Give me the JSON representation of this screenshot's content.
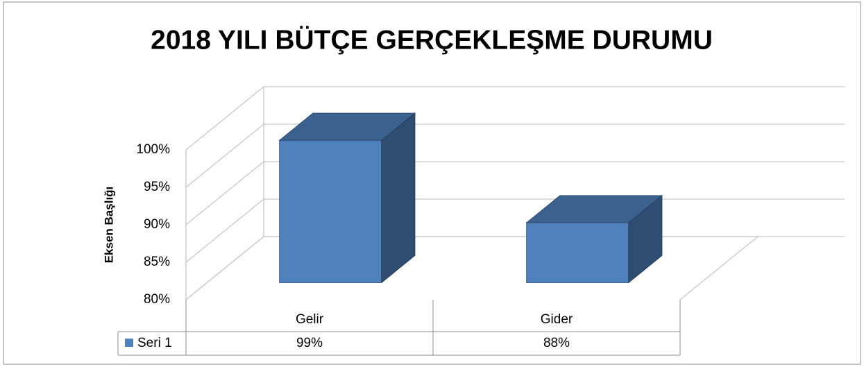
{
  "chart_data": {
    "type": "bar3d",
    "title": "2018 YILI BÜTÇE GERÇEKLEŞME DURUMU",
    "y_label": "Eksen Başlığı",
    "categories": [
      "Gelir",
      "Gider"
    ],
    "series": [
      {
        "name": "Seri 1",
        "color": "#4f81bd",
        "values": [
          99,
          88
        ],
        "value_labels": [
          "99%",
          "88%"
        ]
      }
    ],
    "ylim": [
      80,
      100
    ],
    "yticks": [
      {
        "value": 80,
        "label": "80%"
      },
      {
        "value": 85,
        "label": "85%"
      },
      {
        "value": 90,
        "label": "90%"
      },
      {
        "value": 95,
        "label": "95%"
      },
      {
        "value": 100,
        "label": "100%"
      }
    ],
    "grid": true
  }
}
